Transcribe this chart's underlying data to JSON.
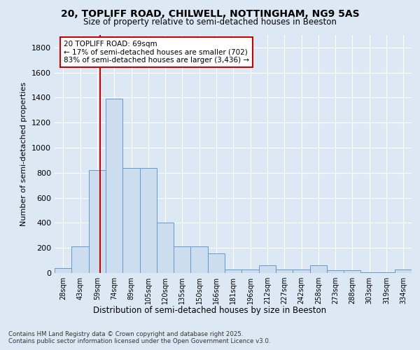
{
  "title_line1": "20, TOPLIFF ROAD, CHILWELL, NOTTINGHAM, NG9 5AS",
  "title_line2": "Size of property relative to semi-detached houses in Beeston",
  "xlabel": "Distribution of semi-detached houses by size in Beeston",
  "ylabel": "Number of semi-detached properties",
  "footnote": "Contains HM Land Registry data © Crown copyright and database right 2025.\nContains public sector information licensed under the Open Government Licence v3.0.",
  "bar_color": "#ccddf0",
  "bar_edgecolor": "#6699cc",
  "fig_bg_color": "#dce9f5",
  "plot_bg_color": "#dce9f5",
  "annotation_box_facecolor": "#ffffff",
  "annotation_box_edgecolor": "#cc0000",
  "vline_color": "#cc0000",
  "property_size": 69,
  "annotation_text": "20 TOPLIFF ROAD: 69sqm\n← 17% of semi-detached houses are smaller (702)\n83% of semi-detached houses are larger (3,436) →",
  "bin_labels": [
    "28sqm",
    "43sqm",
    "59sqm",
    "74sqm",
    "89sqm",
    "105sqm",
    "120sqm",
    "135sqm",
    "150sqm",
    "166sqm",
    "181sqm",
    "196sqm",
    "212sqm",
    "227sqm",
    "242sqm",
    "258sqm",
    "273sqm",
    "288sqm",
    "303sqm",
    "319sqm",
    "334sqm"
  ],
  "bin_edges": [
    28,
    43,
    59,
    74,
    89,
    105,
    120,
    135,
    150,
    166,
    181,
    196,
    212,
    227,
    242,
    258,
    273,
    288,
    303,
    319,
    334,
    349
  ],
  "bar_heights": [
    40,
    210,
    820,
    1390,
    840,
    840,
    400,
    215,
    210,
    155,
    30,
    30,
    60,
    30,
    30,
    60,
    25,
    20,
    8,
    8,
    30
  ],
  "ylim": [
    0,
    1900
  ],
  "yticks": [
    0,
    200,
    400,
    600,
    800,
    1000,
    1200,
    1400,
    1600,
    1800
  ]
}
